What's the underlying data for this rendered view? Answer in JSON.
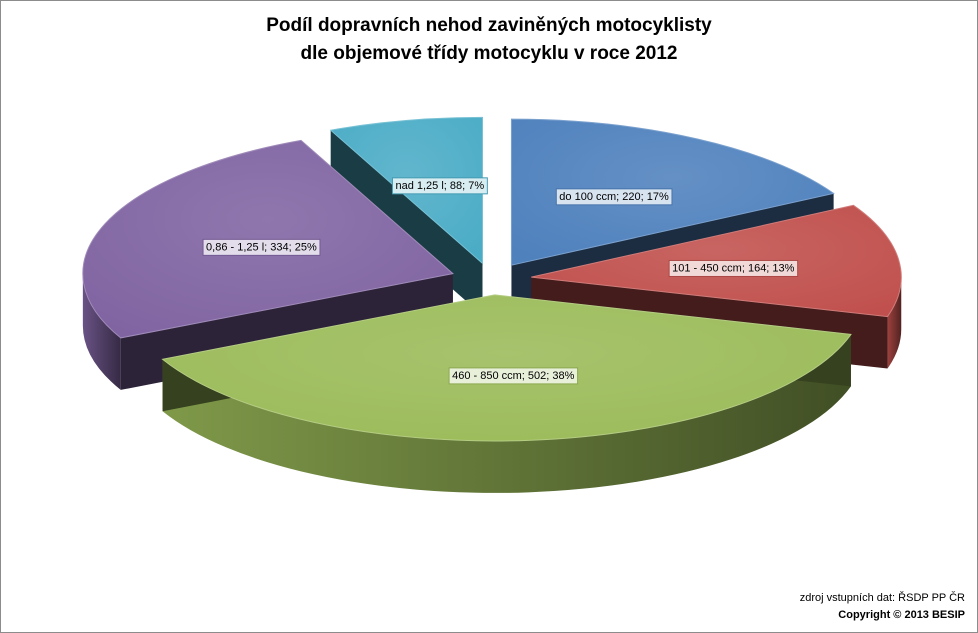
{
  "chart_data": {
    "type": "pie",
    "title_lines": [
      "Podíl dopravních nehod zaviněných motocyklisty",
      "dle objemové třídy  motocyklu v roce 2012"
    ],
    "slices": [
      {
        "label": "do 100 ccm; 220; 17%",
        "category": "do 100 ccm",
        "value": 220,
        "percent": 17,
        "color": "#4f81bd"
      },
      {
        "label": "101 - 450 ccm; 164; 13%",
        "category": "101 - 450 ccm",
        "value": 164,
        "percent": 13,
        "color": "#c0504d"
      },
      {
        "label": "460 - 850 ccm; 502; 38%",
        "category": "460 - 850 ccm",
        "value": 502,
        "percent": 38,
        "color": "#9bbb59"
      },
      {
        "label": "0,86 - 1,25 l; 334; 25%",
        "category": "0,86 - 1,25 l",
        "value": 334,
        "percent": 25,
        "color": "#8064a2"
      },
      {
        "label": "nad 1,25 l; 88; 7%",
        "category": "nad 1,25 l",
        "value": 88,
        "percent": 7,
        "color": "#4bacc6"
      }
    ],
    "style": "3d-exploded"
  },
  "footer": {
    "source": "zdroj vstupních dat: ŘSDP PP ČR",
    "copyright": "Copyright © 2013  BESIP"
  }
}
